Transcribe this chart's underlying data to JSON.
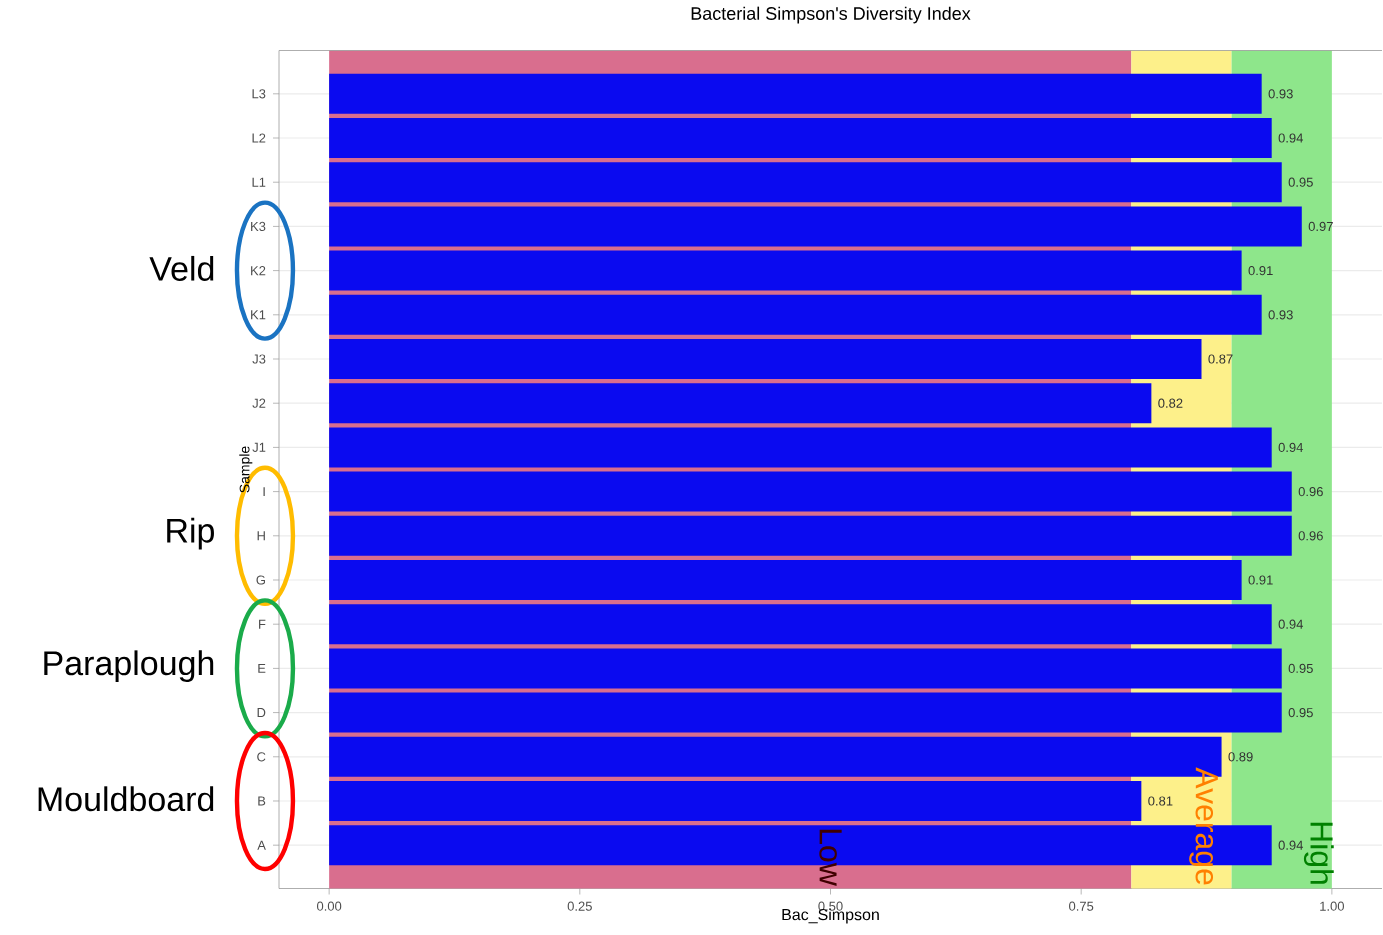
{
  "chart_data": {
    "type": "bar",
    "orientation": "horizontal",
    "title": "Bacterial Simpson's Diversity Index",
    "xlabel": "Bac_Simpson",
    "ylabel": "Sample",
    "categories": [
      "L3",
      "L2",
      "L1",
      "K3",
      "K2",
      "K1",
      "J3",
      "J2",
      "J1",
      "I",
      "H",
      "G",
      "F",
      "E",
      "D",
      "C",
      "B",
      "A"
    ],
    "values": [
      0.93,
      0.94,
      0.95,
      0.97,
      0.91,
      0.93,
      0.87,
      0.82,
      0.94,
      0.96,
      0.96,
      0.91,
      0.94,
      0.95,
      0.95,
      0.89,
      0.81,
      0.94
    ],
    "color": "#0a0af0",
    "data_labels": true,
    "xlim": [
      -0.05,
      1.05
    ],
    "xticks": [
      {
        "value": 0,
        "label": "0.00"
      },
      {
        "value": 0.25,
        "label": "0.25"
      },
      {
        "value": 0.5,
        "label": "0.50"
      },
      {
        "value": 0.75,
        "label": "0.75"
      },
      {
        "value": 1,
        "label": "1.00"
      }
    ],
    "bands": [
      {
        "axis": "x",
        "from": 0,
        "to": 0.8,
        "label": "Low",
        "color": "#d96e8e"
      },
      {
        "axis": "x",
        "from": 0.8,
        "to": 0.9,
        "label": "Average",
        "color": "#fdf08a"
      },
      {
        "axis": "x",
        "from": 0.9,
        "to": 1.0,
        "label": "High",
        "color": "#8ee68b"
      }
    ],
    "annotations": [
      "Veld",
      "Rip",
      "Paraplough",
      "Mouldboard"
    ],
    "grid": "y"
  }
}
